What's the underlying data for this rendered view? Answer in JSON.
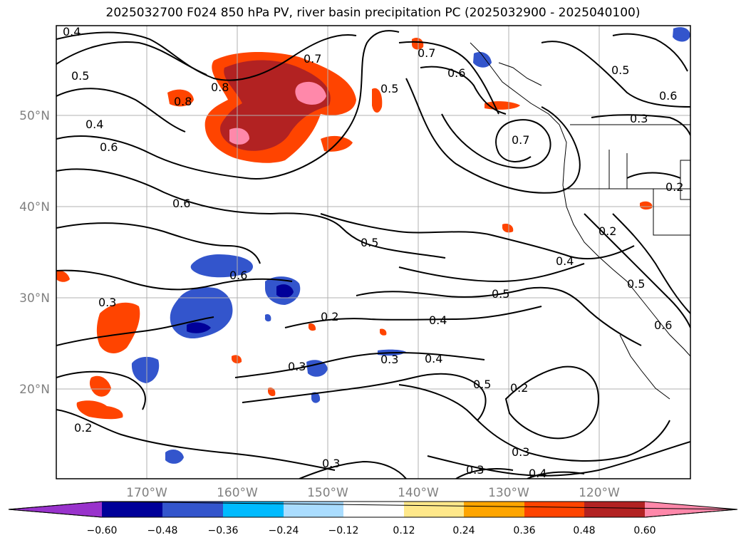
{
  "title": "2025032700 F024 850 hPa PV, river basin precipitation PC (2025032900 - 2025040100)",
  "lat_labels": [
    "50°N",
    "40°N",
    "30°N",
    "20°N"
  ],
  "lon_labels": [
    "170°W",
    "160°W",
    "150°W",
    "140°W",
    "130°W",
    "120°W"
  ],
  "colorbar": {
    "ticks": [
      "−0.60",
      "−0.48",
      "−0.36",
      "−0.24",
      "−0.12",
      "0.12",
      "0.24",
      "0.36",
      "0.48",
      "0.60"
    ],
    "colors": [
      "#9933cc",
      "#000099",
      "#3355cc",
      "#00bbff",
      "#aaddff",
      "#ffffff",
      "#ffe88a",
      "#ffa500",
      "#ff4400",
      "#b22222",
      "#ff88aa"
    ]
  },
  "contour_labels": [
    "0.4",
    "0.5",
    "0.4",
    "0.6",
    "0.8",
    "0.8",
    "0.7",
    "0.5",
    "0.7",
    "0.6",
    "0.5",
    "0.6",
    "0.3",
    "0.7",
    "0.6",
    "0.5",
    "0.6",
    "0.3",
    "0.2",
    "0.4",
    "0.5",
    "0.3",
    "0.2",
    "0.4",
    "0.4",
    "0.3",
    "0.3",
    "0.5",
    "0.2",
    "0.2",
    "0.3",
    "0.3",
    "0.4",
    "0.2",
    "0.5",
    "0.6"
  ]
}
